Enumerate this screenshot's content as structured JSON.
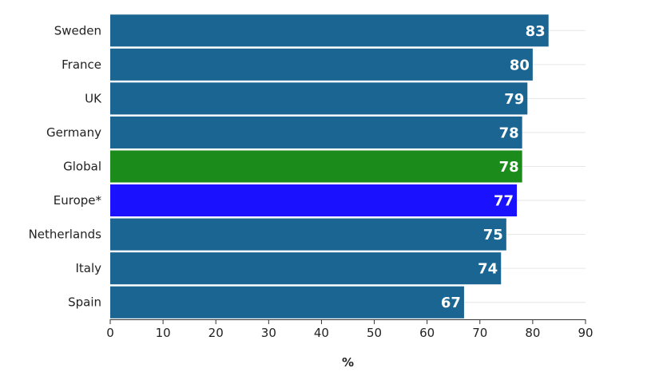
{
  "chart_data": {
    "type": "bar",
    "orientation": "horizontal",
    "categories": [
      "Sweden",
      "France",
      "UK",
      "Germany",
      "Global",
      "Europe*",
      "Netherlands",
      "Italy",
      "Spain"
    ],
    "values": [
      83,
      80,
      79,
      78,
      78,
      77,
      75,
      74,
      67
    ],
    "bar_colors": [
      "#1b6592",
      "#1b6592",
      "#1b6592",
      "#1b6592",
      "#1b8c1b",
      "#1a12ff",
      "#1b6592",
      "#1b6592",
      "#1b6592"
    ],
    "xlabel": "%",
    "ylabel": "",
    "xlim": [
      0,
      90
    ],
    "xticks": [
      0,
      10,
      20,
      30,
      40,
      50,
      60,
      70,
      80,
      90
    ],
    "grid": true,
    "legend": "none"
  }
}
